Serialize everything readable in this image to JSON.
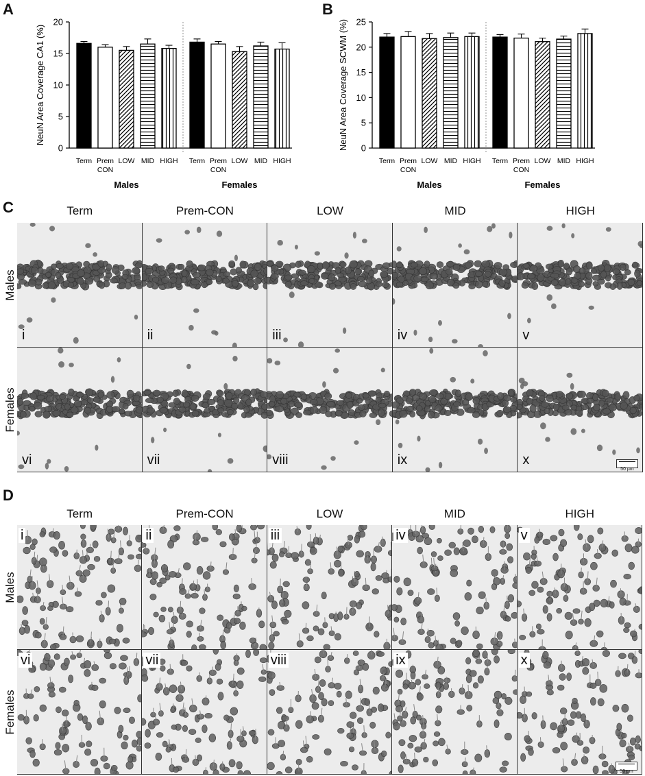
{
  "panels": {
    "A": {
      "letter": "A"
    },
    "B": {
      "letter": "B"
    },
    "C": {
      "letter": "C",
      "columns": [
        "Term",
        "Prem-CON",
        "LOW",
        "MID",
        "HIGH"
      ],
      "rows": [
        "Males",
        "Females"
      ],
      "numerals": [
        "i",
        "ii",
        "iii",
        "iv",
        "v",
        "vi",
        "vii",
        "viii",
        "ix",
        "x"
      ],
      "scale_bar": "50 µm"
    },
    "D": {
      "letter": "D",
      "columns": [
        "Term",
        "Prem-CON",
        "LOW",
        "MID",
        "HIGH"
      ],
      "rows": [
        "Males",
        "Females"
      ],
      "numerals": [
        "i",
        "ii",
        "iii",
        "iv",
        "v",
        "vi",
        "vii",
        "viii",
        "ix",
        "x"
      ],
      "scale_bar": "50 µm"
    }
  },
  "chart_data": [
    {
      "type": "bar",
      "ylabel": "NeuN Area Coverage CA1 (%)",
      "ylim": [
        0,
        20
      ],
      "yticks": [
        0,
        5,
        10,
        15,
        20
      ],
      "categories": [
        "Term",
        "Prem CON",
        "LOW",
        "MID",
        "HIGH",
        "Term",
        "Prem CON",
        "LOW",
        "MID",
        "HIGH"
      ],
      "category_lines": [
        [
          "Term"
        ],
        [
          "Prem",
          "CON"
        ],
        [
          "LOW"
        ],
        [
          "MID"
        ],
        [
          "HIGH"
        ],
        [
          "Term"
        ],
        [
          "Prem",
          "CON"
        ],
        [
          "LOW"
        ],
        [
          "MID"
        ],
        [
          "HIGH"
        ]
      ],
      "groups": [
        "Males",
        "Females"
      ],
      "values": [
        16.6,
        16.0,
        15.5,
        16.5,
        15.8,
        16.8,
        16.5,
        15.3,
        16.2,
        15.7
      ],
      "errors": [
        0.3,
        0.4,
        0.6,
        0.8,
        0.5,
        0.5,
        0.4,
        0.8,
        0.6,
        1.0
      ],
      "fills": [
        "solid",
        "white",
        "diagonal",
        "horizontal",
        "vertical",
        "solid",
        "white",
        "diagonal",
        "horizontal",
        "vertical"
      ]
    },
    {
      "type": "bar",
      "ylabel": "NeuN Area Coverage SCWM (%)",
      "ylim": [
        0,
        25
      ],
      "yticks": [
        0,
        5,
        10,
        15,
        20,
        25
      ],
      "categories": [
        "Term",
        "Prem CON",
        "LOW",
        "MID",
        "HIGH",
        "Term",
        "Prem CON",
        "LOW",
        "MID",
        "HIGH"
      ],
      "category_lines": [
        [
          "Term"
        ],
        [
          "Prem",
          "CON"
        ],
        [
          "LOW"
        ],
        [
          "MID"
        ],
        [
          "HIGH"
        ],
        [
          "Term"
        ],
        [
          "Prem",
          "CON"
        ],
        [
          "LOW"
        ],
        [
          "MID"
        ],
        [
          "HIGH"
        ]
      ],
      "groups": [
        "Males",
        "Females"
      ],
      "values": [
        22.0,
        22.1,
        21.7,
        21.9,
        22.1,
        22.0,
        21.8,
        21.1,
        21.6,
        22.7
      ],
      "errors": [
        0.7,
        1.0,
        1.0,
        0.9,
        0.7,
        0.5,
        0.8,
        0.7,
        0.6,
        0.9
      ],
      "fills": [
        "solid",
        "white",
        "diagonal",
        "horizontal",
        "vertical",
        "solid",
        "white",
        "diagonal",
        "horizontal",
        "vertical"
      ]
    }
  ]
}
